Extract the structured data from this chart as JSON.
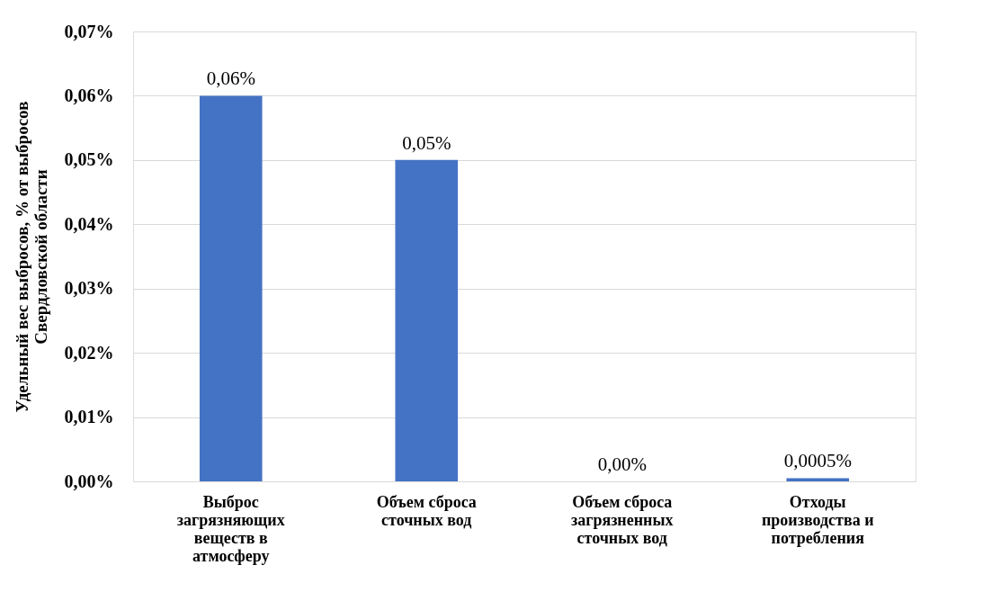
{
  "chart_data": {
    "type": "bar",
    "ylabel": "Удельный вес выбросов, % от выбросов Свердловской области",
    "categories": [
      "Выброс загрязняющих веществ в атмосферу",
      "Объем сброса сточных вод",
      "Объем сброса загрязненных сточных вод",
      "Отходы производства и потребления"
    ],
    "values": [
      0.06,
      0.05,
      0,
      0.0005
    ],
    "color": "#4472c4",
    "value_labels": [
      "0,06%",
      "0,05%",
      "0,00%",
      "0,0005%"
    ],
    "ylim": [
      0,
      0.07
    ],
    "yticks": [
      {
        "value": 0,
        "label": "0,00%"
      },
      {
        "value": 0.01,
        "label": "0,01%"
      },
      {
        "value": 0.02,
        "label": "0,02%"
      },
      {
        "value": 0.03,
        "label": "0,03%"
      },
      {
        "value": 0.04,
        "label": "0,04%"
      },
      {
        "value": 0.05,
        "label": "0,05%"
      },
      {
        "value": 0.06,
        "label": "0,06%"
      },
      {
        "value": 0.07,
        "label": "0,07%"
      }
    ],
    "grid": "y"
  }
}
